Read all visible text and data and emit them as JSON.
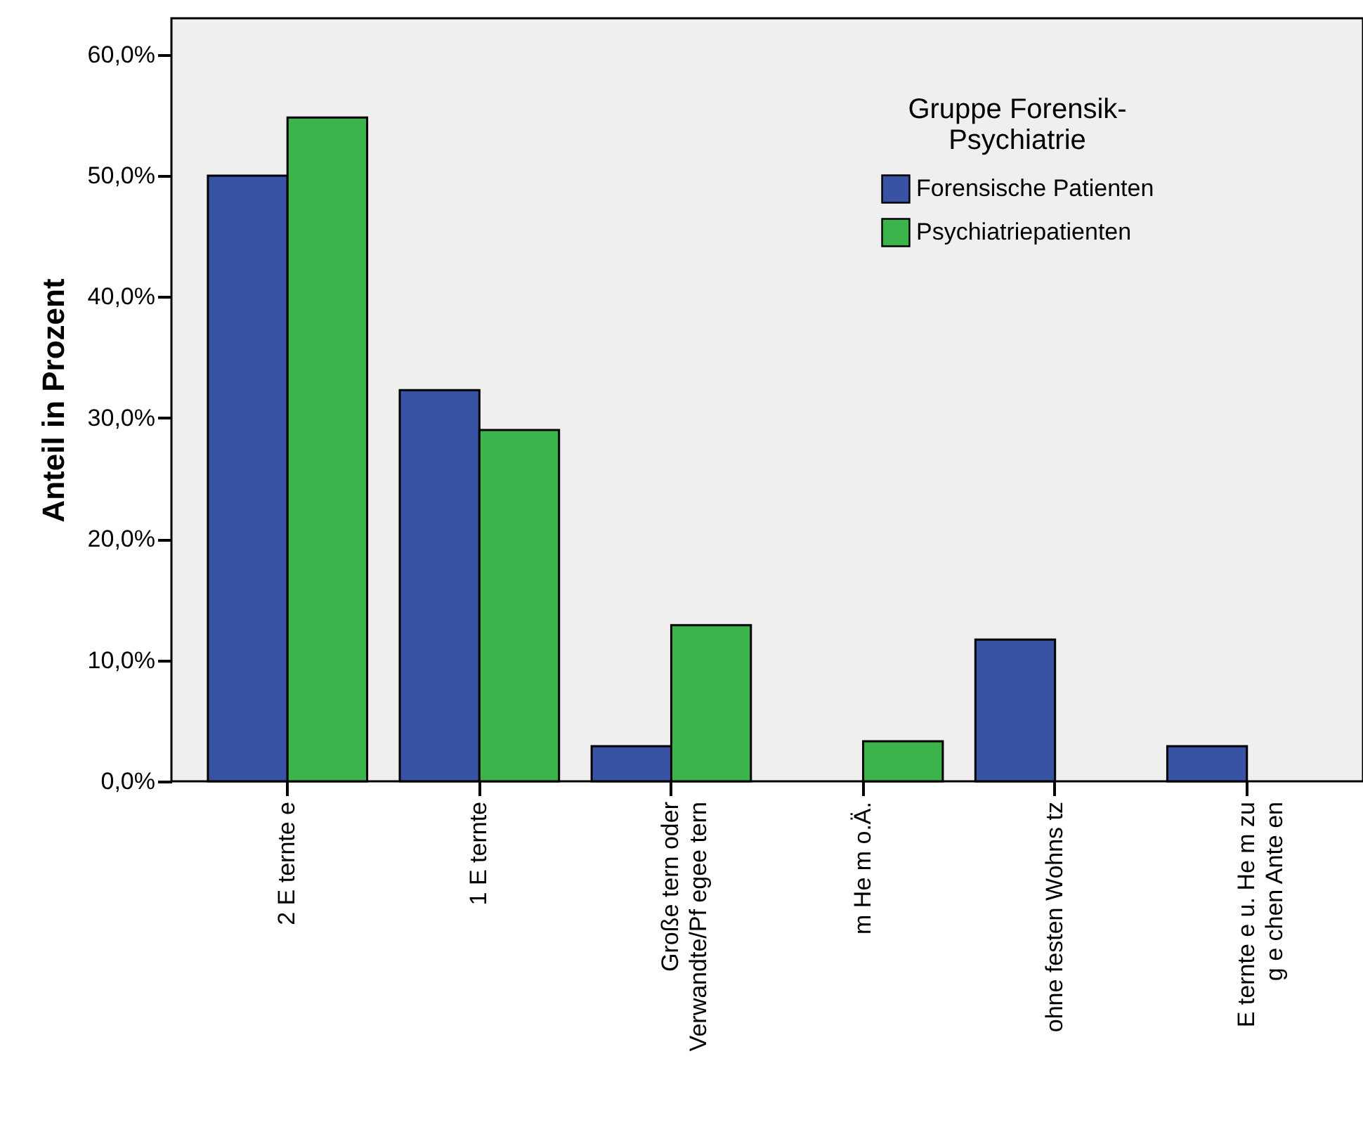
{
  "chart_data": {
    "type": "bar",
    "ylabel": "Anteil in Prozent",
    "legend_title": "Gruppe Forensik-\nPsychiatrie",
    "categories": [
      "2 E ternte  e",
      "1 E ternte",
      "Große tern oder\nVerwandte/Pf egee tern",
      "m He m o.Ä.",
      "ohne festen Wohns tz",
      "E ternte  e u. He m zu\ng e chen Ante  en"
    ],
    "series": [
      {
        "name": "Forensische Patienten",
        "color": "#3953a4",
        "values": [
          50.0,
          32.3,
          2.9,
          0,
          11.7,
          2.9
        ]
      },
      {
        "name": "Psychiatriepatienten",
        "color": "#3cb44c",
        "values": [
          54.8,
          29.0,
          12.9,
          3.3,
          0,
          0
        ]
      }
    ],
    "ylim": [
      0,
      63
    ],
    "yticks": [
      {
        "value": 0,
        "label": "0,0%"
      },
      {
        "value": 10,
        "label": "10,0%"
      },
      {
        "value": 20,
        "label": "20,0%"
      },
      {
        "value": 30,
        "label": "30,0%"
      },
      {
        "value": 40,
        "label": "40,0%"
      },
      {
        "value": 50,
        "label": "50,0%"
      },
      {
        "value": 60,
        "label": "60,0%"
      }
    ],
    "grid": false,
    "legend": "top right"
  }
}
